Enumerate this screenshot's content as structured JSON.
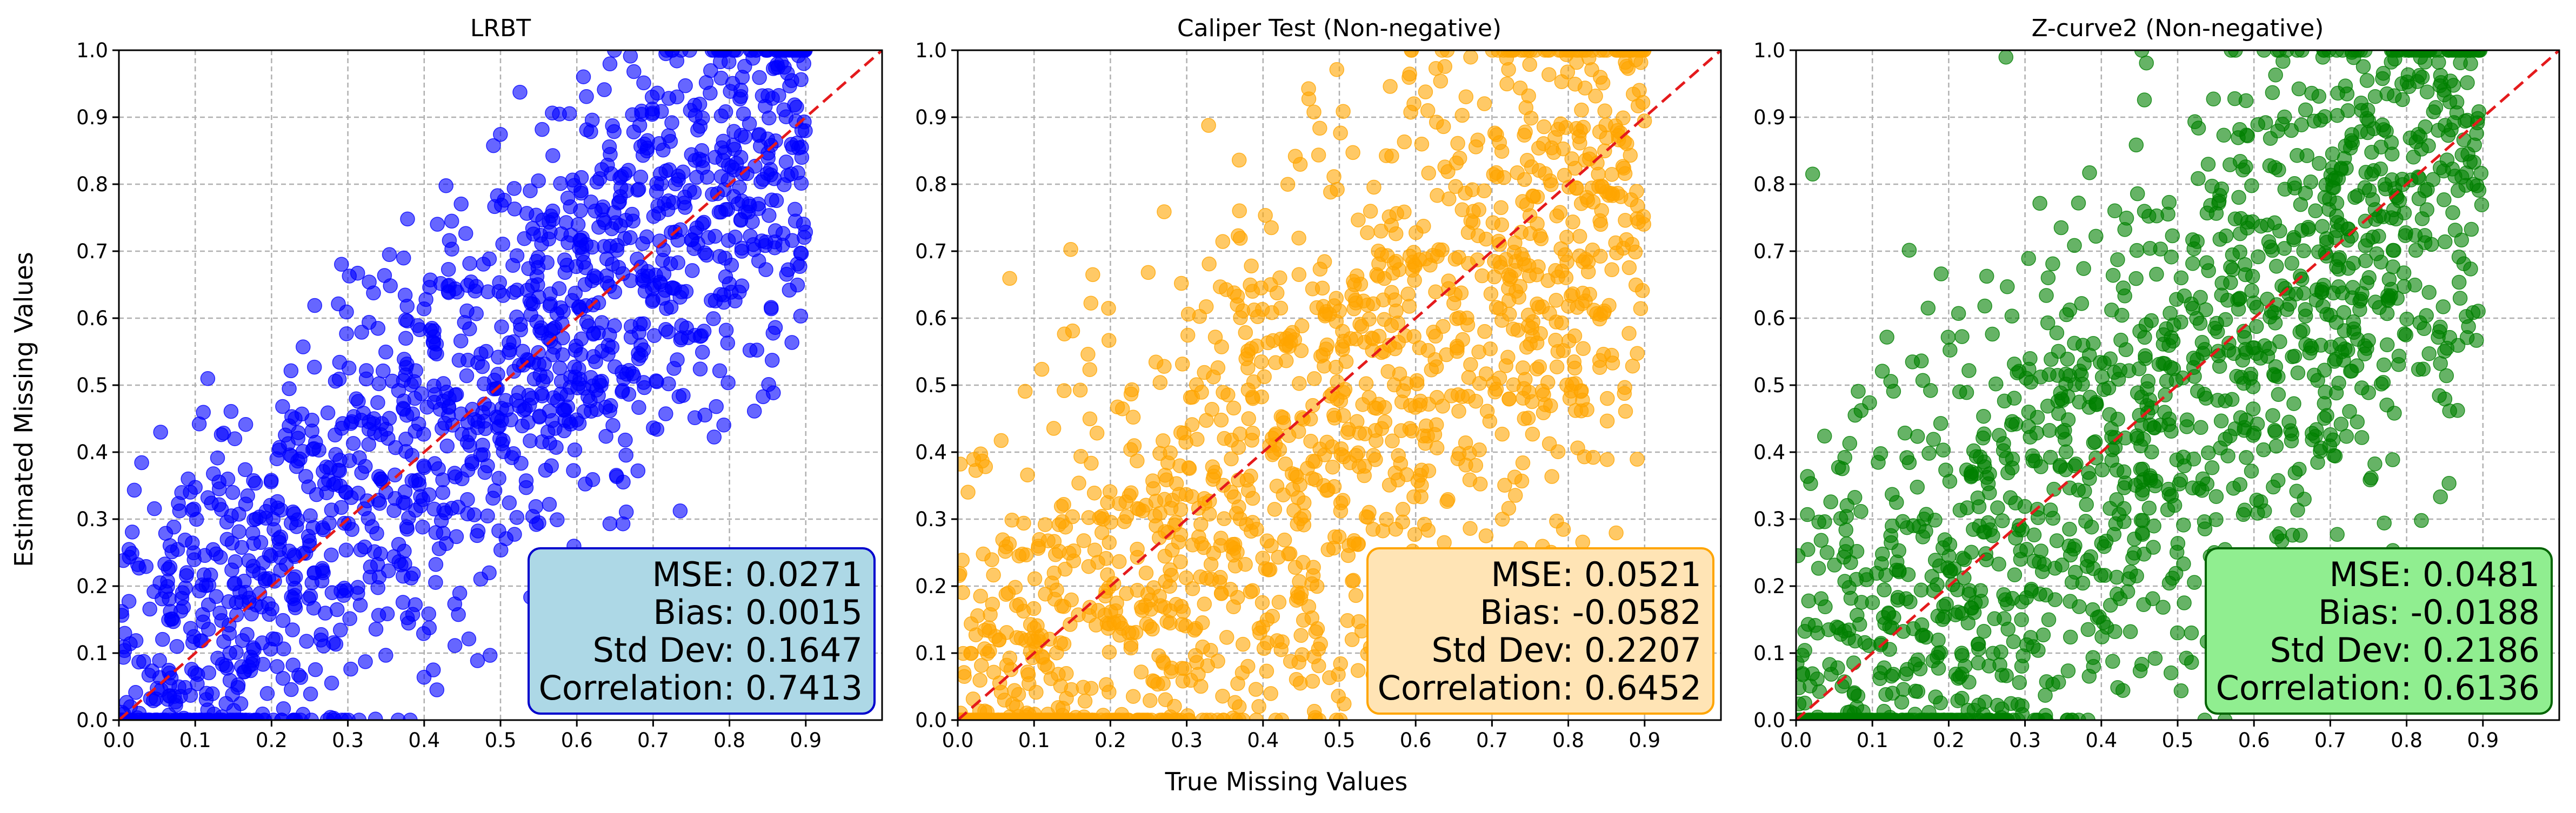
{
  "figure": {
    "xlabel": "True Missing Values",
    "ylabel": "Estimated Missing Values"
  },
  "chart_data": [
    {
      "type": "scatter",
      "title": "LRBT",
      "xlim": [
        0,
        1
      ],
      "ylim": [
        0,
        1
      ],
      "xticks": [
        "0.0",
        "0.1",
        "0.2",
        "0.3",
        "0.4",
        "0.5",
        "0.6",
        "0.7",
        "0.8",
        "0.9"
      ],
      "yticks": [
        "0.0",
        "0.1",
        "0.2",
        "0.3",
        "0.4",
        "0.5",
        "0.6",
        "0.7",
        "0.8",
        "0.9",
        "1.0"
      ],
      "grid": true,
      "point_color": "#0000ff",
      "box_fill": "#add8e6",
      "box_edge": "#0000cd",
      "reference_line": "y = x",
      "stats": [
        "MSE: 0.0271",
        "Bias: 0.0015",
        "Std Dev: 0.1647",
        "Correlation: 0.7413"
      ],
      "sample": {
        "n": 1500,
        "bias": 0.0015,
        "sd": 0.1647,
        "clip_low": true
      }
    },
    {
      "type": "scatter",
      "title": "Caliper Test (Non-negative)",
      "xlim": [
        0,
        1
      ],
      "ylim": [
        0,
        1
      ],
      "xticks": [
        "0.0",
        "0.1",
        "0.2",
        "0.3",
        "0.4",
        "0.5",
        "0.6",
        "0.7",
        "0.8",
        "0.9"
      ],
      "yticks": [
        "0.0",
        "0.1",
        "0.2",
        "0.3",
        "0.4",
        "0.5",
        "0.6",
        "0.7",
        "0.8",
        "0.9",
        "1.0"
      ],
      "grid": true,
      "point_color": "#ffa500",
      "box_fill": "#ffe4b5",
      "box_edge": "#ffa500",
      "reference_line": "y = x",
      "stats": [
        "MSE: 0.0521",
        "Bias: -0.0582",
        "Std Dev: 0.2207",
        "Correlation: 0.6452"
      ],
      "sample": {
        "n": 1500,
        "bias": -0.0582,
        "sd": 0.2207,
        "clip_low": true
      }
    },
    {
      "type": "scatter",
      "title": "Z-curve2 (Non-negative)",
      "xlim": [
        0,
        1
      ],
      "ylim": [
        0,
        1
      ],
      "xticks": [
        "0.0",
        "0.1",
        "0.2",
        "0.3",
        "0.4",
        "0.5",
        "0.6",
        "0.7",
        "0.8",
        "0.9"
      ],
      "yticks": [
        "0.0",
        "0.1",
        "0.2",
        "0.3",
        "0.4",
        "0.5",
        "0.6",
        "0.7",
        "0.8",
        "0.9",
        "1.0"
      ],
      "grid": true,
      "point_color": "#008000",
      "box_fill": "#90ee90",
      "box_edge": "#006400",
      "reference_line": "y = x",
      "stats": [
        "MSE: 0.0481",
        "Bias: -0.0188",
        "Std Dev: 0.2186",
        "Correlation: 0.6136"
      ],
      "sample": {
        "n": 1500,
        "bias": -0.0188,
        "sd": 0.2186,
        "clip_low": true
      }
    }
  ]
}
